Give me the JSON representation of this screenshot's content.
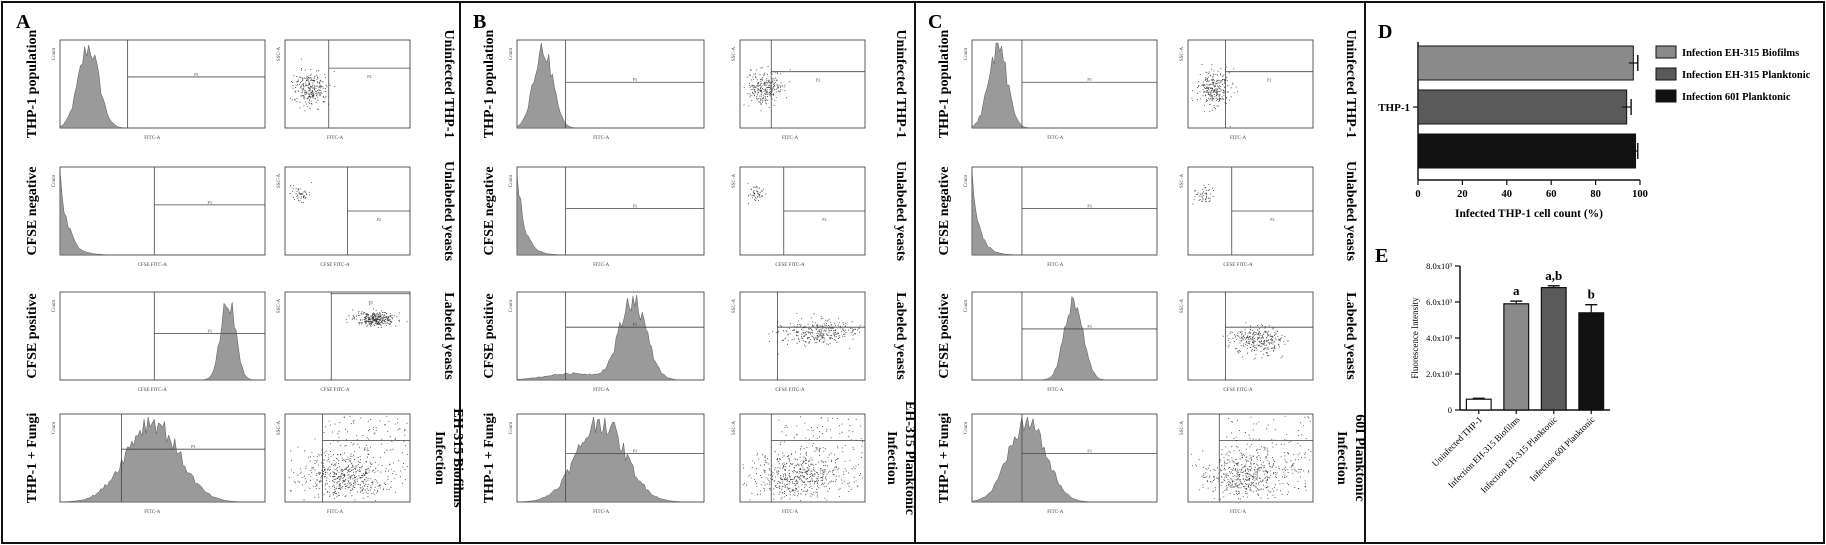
{
  "panels": {
    "A": {
      "letter": "A",
      "row_labels": [
        "THP-1 population",
        "CFSE negative",
        "CFSE positive",
        "THP-1 + Fungi"
      ],
      "side_labels": [
        [
          "Uninfected THP-1"
        ],
        [
          "Unlabeled yeasts"
        ],
        [
          "Labeled yeasts"
        ],
        [
          "Infection",
          "EH-315 Biofilms"
        ]
      ],
      "hist_xlabels": [
        "FITC-A",
        "CFSE FITC-A",
        "CFSE FITC-A",
        "FITC-A"
      ]
    },
    "B": {
      "letter": "B",
      "row_labels": [
        "THP-1 population",
        "CFSE negative",
        "CFSE positive",
        "THP-1 + Fungi"
      ],
      "side_labels": [
        [
          "Uninfected THP-1"
        ],
        [
          "Unlabeled yeasts"
        ],
        [
          "Labeled yeasts"
        ],
        [
          "Infection",
          "EH-315 Planktonic"
        ]
      ],
      "hist_xlabels": [
        "FITC-A",
        "FITC-A",
        "FITC-A",
        "FITC-A"
      ]
    },
    "C": {
      "letter": "C",
      "row_labels": [
        "THP-1 population",
        "CFSE negative",
        "CFSE positive",
        "THP-1 + Fungi"
      ],
      "side_labels": [
        [
          "Uninfected THP-1"
        ],
        [
          "Unlabeled yeasts"
        ],
        [
          "Labeled yeasts"
        ],
        [
          "Infection",
          "60I Planktonic"
        ]
      ],
      "hist_xlabels": [
        "FITC-A",
        "FITC-A",
        "FITC-A",
        "FITC-A"
      ]
    }
  },
  "flow_text": {
    "hist_ylabel": "Count",
    "scatter_ylabel": "SSC-A",
    "scatter_xlabels": [
      "FITC-A",
      "CFSE FITC-A",
      "CFSE FITC-A",
      "FITC-A"
    ],
    "hist_gate": "P3",
    "scatter_gate": "P2"
  },
  "chart_data": [
    {
      "panel": "D",
      "type": "bar",
      "orientation": "horizontal",
      "categories": [
        "THP-1"
      ],
      "series": [
        {
          "name": "Infection EH-315 Biofilms",
          "values": [
            97
          ],
          "error": [
            2
          ],
          "color": "#8a8a8a"
        },
        {
          "name": "Infection EH-315 Planktonic",
          "values": [
            94
          ],
          "error": [
            2
          ],
          "color": "#5a5a5a"
        },
        {
          "name": "Infection 60I Planktonic",
          "values": [
            98
          ],
          "error": [
            1
          ],
          "color": "#111111"
        }
      ],
      "xlabel": "Infected THP-1 cell count (%)",
      "xlim": [
        0,
        100
      ],
      "xticks": [
        "0",
        "20",
        "40",
        "60",
        "80",
        "100"
      ],
      "category_label": "THP-1"
    },
    {
      "panel": "E",
      "type": "bar",
      "categories": [
        "Uninfected THP-1",
        "Infection EH-315 Biofilms",
        "Infection EH-315 Planktonic",
        "Infection 60I Planktonic"
      ],
      "values": [
        0.6,
        5.9,
        6.8,
        5.4
      ],
      "errors": [
        0.05,
        0.15,
        0.1,
        0.45
      ],
      "colors": [
        "#ffffff",
        "#8a8a8a",
        "#5a5a5a",
        "#111111"
      ],
      "annotations": [
        "",
        "a",
        "a,b",
        "b"
      ],
      "ylabel": "Fluorescence Intensity",
      "ylim": [
        0,
        8
      ],
      "yticks": [
        "0",
        "2.0x10³",
        "4.0x10³",
        "6.0x10³",
        "8.0x10³"
      ]
    }
  ],
  "panel_letters": {
    "D": "D",
    "E": "E"
  }
}
